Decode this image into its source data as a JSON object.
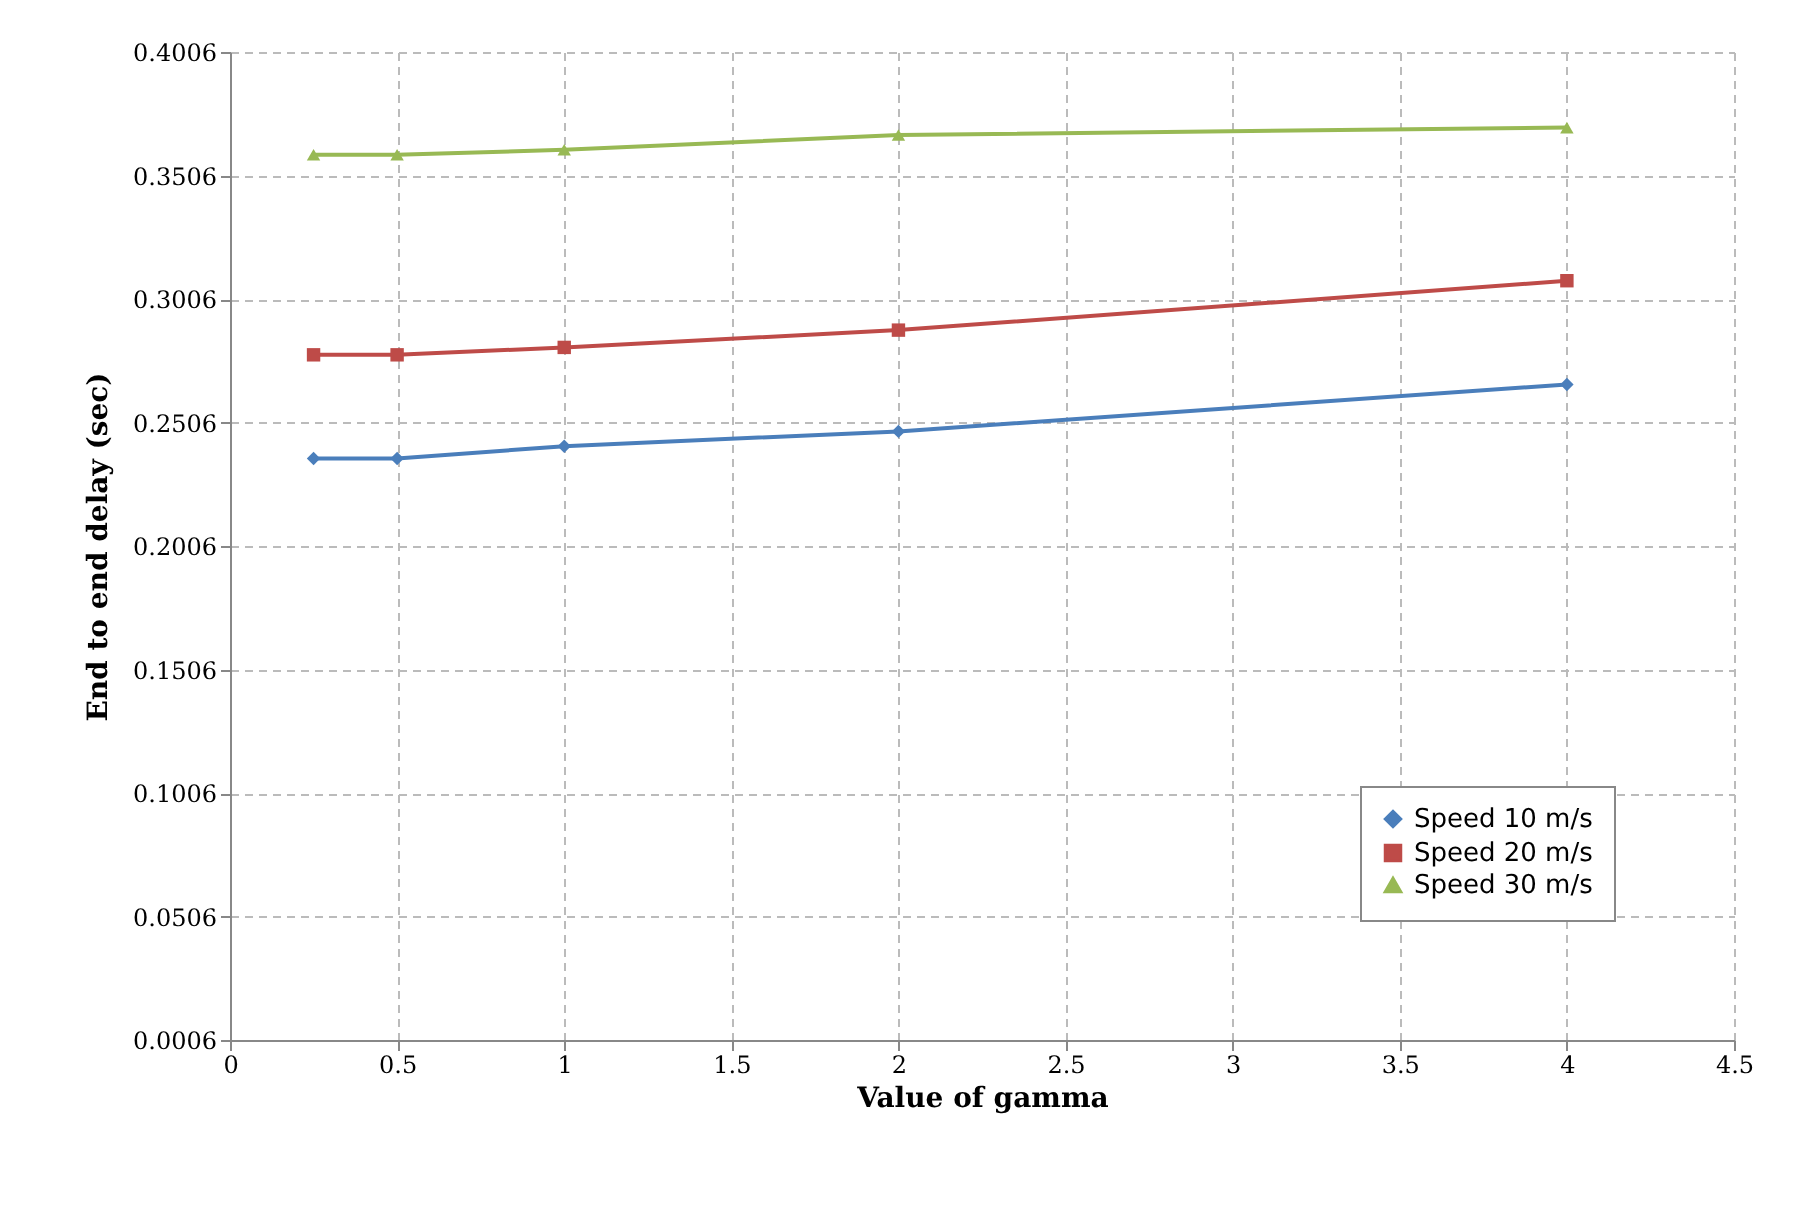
{
  "chart_data": {
    "type": "line",
    "xlabel": "Value of gamma",
    "ylabel": "End to end delay (sec)",
    "x": [
      0.25,
      0.5,
      1,
      2,
      4
    ],
    "series": [
      {
        "name": "Speed 10 m/s",
        "color": "#4a7ebb",
        "marker": "diamond",
        "values": [
          0.236,
          0.236,
          0.241,
          0.247,
          0.266
        ]
      },
      {
        "name": "Speed 20 m/s",
        "color": "#be4b48",
        "marker": "square",
        "values": [
          0.278,
          0.278,
          0.281,
          0.288,
          0.308
        ]
      },
      {
        "name": "Speed 30 m/s",
        "color": "#98b954",
        "marker": "triangle",
        "values": [
          0.359,
          0.359,
          0.361,
          0.367,
          0.37
        ]
      }
    ],
    "xlim": [
      0,
      4.5
    ],
    "xticks": [
      0,
      0.5,
      1,
      1.5,
      2,
      2.5,
      3,
      3.5,
      4,
      4.5
    ],
    "ylim": [
      0.0006,
      0.4006
    ],
    "yticks": [
      0.0006,
      0.0506,
      0.1006,
      0.1506,
      0.2006,
      0.2506,
      0.3006,
      0.3506,
      0.4006
    ],
    "grid": true,
    "legend": "bottom right",
    "line_style": "solid"
  }
}
